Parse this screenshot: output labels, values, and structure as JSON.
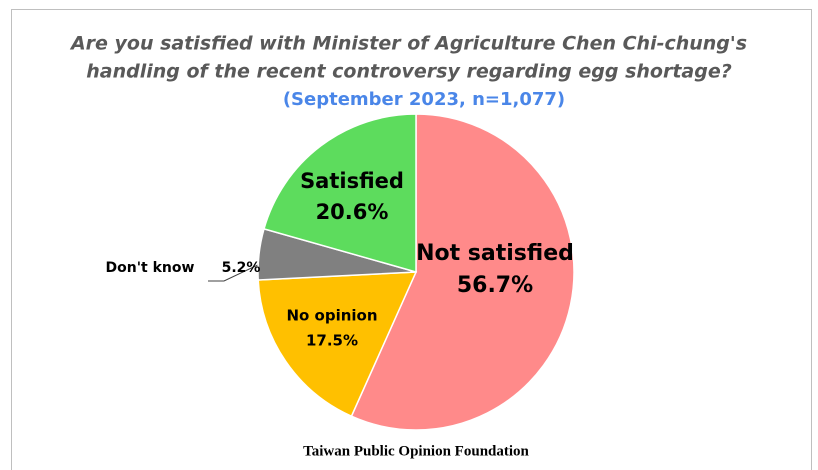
{
  "chart_data": {
    "type": "pie",
    "title": [
      "Are you satisfied with Minister of Agriculture Chen Chi-chung's",
      "handling of the recent controversy regarding egg shortage?"
    ],
    "subtitle": "(September 2023, n=1,077)",
    "source": "Taiwan Public Opinion Foundation",
    "categories": [
      "Not satisfied",
      "No opinion",
      "Don't know",
      "Satisfied"
    ],
    "values": [
      56.7,
      17.5,
      5.2,
      20.6
    ],
    "value_labels": [
      "56.7%",
      "17.5%",
      "5.2%",
      "20.6%"
    ],
    "colors": [
      "#ff8a8a",
      "#ffc000",
      "#808080",
      "#5ddc5d"
    ]
  }
}
